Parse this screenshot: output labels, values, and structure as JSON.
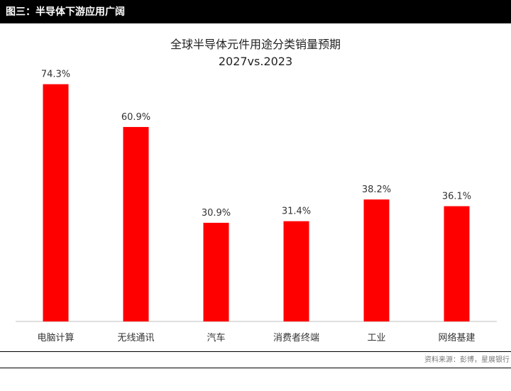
{
  "header": {
    "title": "图三：半导体下游应用广阔"
  },
  "chart_data": {
    "type": "bar",
    "title": "全球半导体元件用途分类销量预期",
    "subtitle": "2027vs.2023",
    "categories": [
      "电脑计算",
      "无线通讯",
      "汽车",
      "消费者终端",
      "工业",
      "网络基建"
    ],
    "values": [
      74.3,
      60.9,
      30.9,
      31.4,
      38.2,
      36.1
    ],
    "value_labels": [
      "74.3%",
      "60.9%",
      "30.9%",
      "31.4%",
      "38.2%",
      "36.1%"
    ],
    "bar_color": "#ff0000",
    "ylim": [
      0,
      80
    ],
    "grid": false,
    "legend": "none"
  },
  "footer": {
    "source": "资料来源：彭博，星展银行"
  }
}
